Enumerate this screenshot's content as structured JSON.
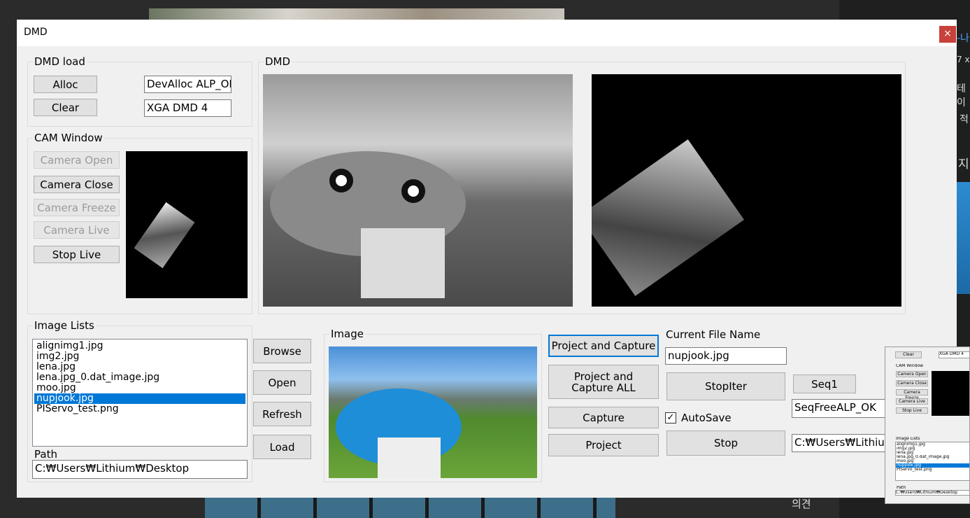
{
  "window": {
    "title": "DMD",
    "close": "×"
  },
  "dmd_load": {
    "label": "DMD load",
    "buttons": [
      "Alloc",
      "Clear"
    ],
    "fields": [
      "DevAlloc ALP_OK",
      "XGA DMD 4"
    ]
  },
  "cam_window": {
    "label": "CAM Window",
    "buttons": [
      "Camera Open",
      "Camera Close",
      "Camera Freeze",
      "Camera Live",
      "Stop Live"
    ],
    "disabled": [
      true,
      false,
      true,
      true,
      false
    ]
  },
  "dmd": {
    "label": "DMD"
  },
  "image_lists": {
    "label": "Image Lists",
    "items": [
      "alignimg1.jpg",
      "img2.jpg",
      "lena.jpg",
      "lena.jpg_0.dat_image.jpg",
      "moo.jpg",
      "nupjook.jpg",
      "PIServo_test.png"
    ],
    "selected": 5,
    "path_label": "Path",
    "path": "C:₩Users₩Lithium₩Desktop",
    "buttons": [
      "Browse",
      "Open",
      "Refresh",
      "Load"
    ]
  },
  "image": {
    "label": "Image"
  },
  "controls": {
    "project_and_capture": "Project and Capture",
    "project_and_capture_all": "Project and Capture ALL",
    "capture": "Capture",
    "project": "Project",
    "current_file_label": "Current File Name",
    "current_file": "nupjook.jpg",
    "stop_iter": "StopIter",
    "autosave": "AutoSave",
    "autosave_checked": true,
    "stop": "Stop",
    "seq1": "Seq1",
    "seq_status": "SeqFreeALP_OK",
    "save_path": "C:₩Users₩Lithium"
  },
  "background": {
    "texts": [
      "-나",
      "7 x",
      "테이",
      "적",
      "지",
      "의견"
    ]
  },
  "thumbnail": {
    "buttons": [
      "Clear",
      "Camera Open",
      "Camera Close",
      "Camera Freeze",
      "Camera Live",
      "Stop Live"
    ],
    "field": "XGA DMD 4",
    "cam_label": "CAM Window",
    "list_label": "Image Lists",
    "items": [
      "alignimg1.jpg",
      "img2.jpg",
      "lena.jpg",
      "lena.jpg_0.dat_image.jpg",
      "moo.jpg",
      "nupjook.jpg",
      "PIServo_test.png"
    ],
    "path_label": "Path",
    "path": "C:₩Users₩Lithium₩Desktop"
  }
}
